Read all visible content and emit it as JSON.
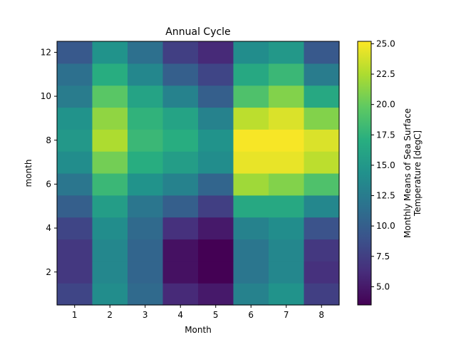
{
  "chart_data": {
    "type": "heatmap",
    "title": "Annual Cycle",
    "xlabel": "Month",
    "ylabel": "month",
    "x": [
      1,
      2,
      3,
      4,
      5,
      6,
      7,
      8
    ],
    "y": [
      1,
      2,
      3,
      4,
      5,
      6,
      7,
      8,
      9,
      10,
      11,
      12
    ],
    "xticks": [
      1,
      2,
      3,
      4,
      5,
      6,
      7,
      8
    ],
    "yticks": [
      2,
      4,
      6,
      8,
      10,
      12
    ],
    "values": [
      [
        8.0,
        14.0,
        11.0,
        6.0,
        5.0,
        13.0,
        14.5,
        7.5
      ],
      [
        7.0,
        13.5,
        10.5,
        4.5,
        3.5,
        12.0,
        13.5,
        6.5
      ],
      [
        7.0,
        13.5,
        10.5,
        4.5,
        3.5,
        12.0,
        13.5,
        7.0
      ],
      [
        8.0,
        14.0,
        11.0,
        6.5,
        5.0,
        13.0,
        14.0,
        9.0
      ],
      [
        10.0,
        15.5,
        12.0,
        10.0,
        7.5,
        16.5,
        16.5,
        13.5
      ],
      [
        12.0,
        18.0,
        14.5,
        13.0,
        10.5,
        22.0,
        21.0,
        19.0
      ],
      [
        14.0,
        20.5,
        17.0,
        15.5,
        14.0,
        24.5,
        24.5,
        23.0
      ],
      [
        15.0,
        22.5,
        18.0,
        17.0,
        14.5,
        25.0,
        25.0,
        24.0
      ],
      [
        14.5,
        21.5,
        17.5,
        16.0,
        13.0,
        23.0,
        24.0,
        21.0
      ],
      [
        12.5,
        19.5,
        16.0,
        13.0,
        10.0,
        19.0,
        21.0,
        16.5
      ],
      [
        11.5,
        17.0,
        13.5,
        10.0,
        8.0,
        16.5,
        18.0,
        12.5
      ],
      [
        9.5,
        14.5,
        11.5,
        7.5,
        6.0,
        14.0,
        15.0,
        9.5
      ]
    ],
    "vmin": 3.5,
    "vmax": 25.2,
    "colormap": "viridis",
    "colorbar": {
      "label_line1": "Monthly Means of Sea Surface",
      "label_line2": "Temperature [degC]",
      "ticks": [
        5.0,
        7.5,
        10.0,
        12.5,
        15.0,
        17.5,
        20.0,
        22.5,
        25.0
      ],
      "tick_labels": [
        "5.0",
        "7.5",
        "10.0",
        "12.5",
        "15.0",
        "17.5",
        "20.0",
        "22.5",
        "25.0"
      ]
    },
    "grid": false
  }
}
